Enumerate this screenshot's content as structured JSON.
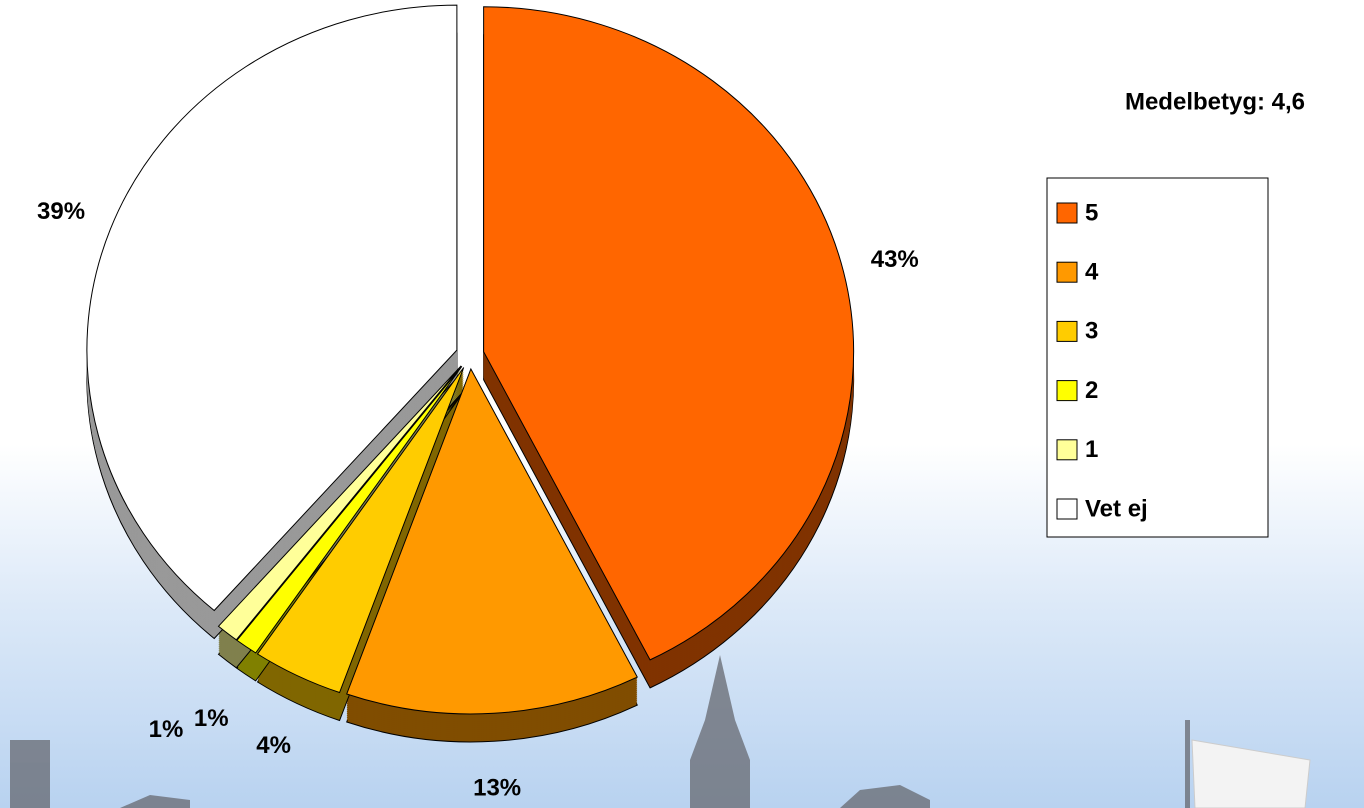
{
  "chart_data": {
    "type": "pie",
    "subtitle": "Medelbetyg: 4,6",
    "categories": [
      "5",
      "4",
      "3",
      "2",
      "1",
      "Vet ej"
    ],
    "values": [
      43,
      13,
      4,
      1,
      1,
      39
    ],
    "value_labels": [
      "43%",
      "13%",
      "4%",
      "1%",
      "1%",
      "39%"
    ],
    "colors": [
      "#ff6600",
      "#ff9900",
      "#ffcc00",
      "#ffff00",
      "#ffff99",
      "#ffffff"
    ],
    "legend": "right"
  }
}
